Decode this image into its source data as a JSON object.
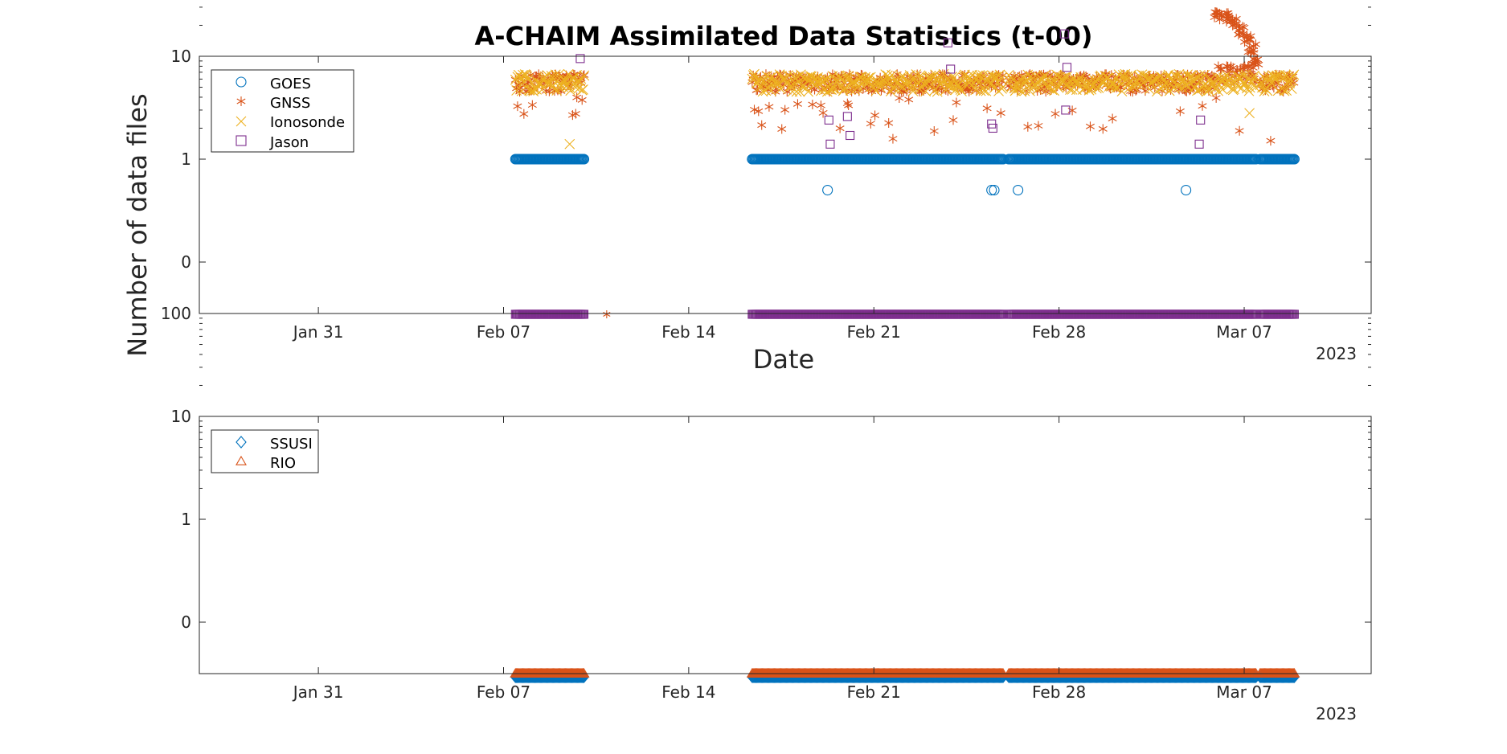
{
  "figure_title": "A-CHAIM Assimilated Data Statistics (t-00)",
  "colors": {
    "blue": "#0072BD",
    "orange": "#D95319",
    "yellow": "#EDB120",
    "purple": "#7E2F8E",
    "axis": "#262626"
  },
  "chart_data": [
    {
      "type": "scatter",
      "title": "A-CHAIM Assimilated Data Statistics (t-00)",
      "xlabel": "Date",
      "ylabel": "Number of data files",
      "x_unit": "days since Jan 31 2023",
      "xlim": [
        -4.5,
        39.8
      ],
      "ylim_log": [
        -0.5,
        2
      ],
      "ytick_labels": [
        "0",
        "1",
        "10",
        "100"
      ],
      "xtick_labels": [
        "Jan 31",
        "Feb 07",
        "Feb 14",
        "Feb 21",
        "Feb 28",
        "Mar 07"
      ],
      "year_label": "2023",
      "legend_location": "top-left",
      "legend": [
        "GOES",
        "GNSS",
        "Ionosonde",
        "Jason"
      ],
      "series": [
        {
          "name": "GOES",
          "marker": "circle",
          "color": "#0072BD",
          "segments": [
            [
              7.45,
              10.05
            ],
            [
              16.4,
              25.9
            ],
            [
              26.1,
              35.45
            ],
            [
              35.6,
              36.9
            ]
          ],
          "segment_value": 1,
          "extra_points": [
            [
              19.25,
              0.5
            ],
            [
              25.45,
              0.5
            ],
            [
              25.55,
              0.5
            ],
            [
              26.45,
              0.5
            ],
            [
              32.8,
              0.5
            ]
          ]
        },
        {
          "name": "GNSS",
          "marker": "asterisk",
          "color": "#D95319",
          "segments": [
            [
              7.45,
              10.05
            ],
            [
              16.4,
              25.9
            ],
            [
              26.1,
              35.45
            ],
            [
              35.6,
              36.9
            ]
          ],
          "typical_value": 5.5,
          "dips_to": 1.5,
          "ramp_points": [
            [
              34.0,
              25
            ],
            [
              34.3,
              24
            ],
            [
              34.6,
              22
            ],
            [
              34.9,
              18
            ],
            [
              35.1,
              15
            ],
            [
              35.3,
              12
            ],
            [
              35.45,
              9
            ]
          ],
          "zero_points": [
            [
              10.9,
              0.0
            ],
            [
              21.5,
              0.0
            ],
            [
              29.5,
              0.0
            ]
          ]
        },
        {
          "name": "Ionosonde",
          "marker": "x",
          "color": "#EDB120",
          "segments": [
            [
              7.45,
              10.05
            ],
            [
              16.4,
              25.9
            ],
            [
              26.1,
              35.45
            ],
            [
              35.6,
              36.9
            ]
          ],
          "typical_value": 5.5,
          "extra_points": [
            [
              9.5,
              1.4
            ],
            [
              35.2,
              2.8
            ]
          ]
        },
        {
          "name": "Jason",
          "marker": "square",
          "color": "#7E2F8E",
          "points": [
            [
              9.9,
              9.5
            ],
            [
              19.3,
              2.4
            ],
            [
              19.35,
              1.4
            ],
            [
              20.0,
              2.6
            ],
            [
              20.1,
              1.7
            ],
            [
              23.8,
              13.5
            ],
            [
              23.9,
              7.5
            ],
            [
              25.45,
              2.2
            ],
            [
              25.5,
              2.0
            ],
            [
              28.2,
              16.5
            ],
            [
              28.3,
              7.8
            ],
            [
              28.25,
              3.0
            ],
            [
              33.35,
              2.4
            ],
            [
              33.3,
              1.4
            ]
          ],
          "baseline_segments": [
            [
              7.45,
              10.05
            ],
            [
              16.4,
              25.9
            ],
            [
              26.1,
              35.45
            ],
            [
              35.6,
              36.9
            ]
          ]
        }
      ]
    },
    {
      "type": "scatter",
      "xlabel": "",
      "ylabel": "",
      "x_unit": "days since Jan 31 2023",
      "xlim": [
        -4.5,
        39.8
      ],
      "ylim_log": [
        -0.5,
        2
      ],
      "ytick_labels": [
        "0",
        "1",
        "10",
        "100"
      ],
      "xtick_labels": [
        "Jan 31",
        "Feb 07",
        "Feb 14",
        "Feb 21",
        "Feb 28",
        "Mar 07"
      ],
      "year_label": "2023",
      "legend_location": "top-left",
      "legend": [
        "SSUSI",
        "RIO"
      ],
      "series": [
        {
          "name": "SSUSI",
          "marker": "diamond",
          "color": "#0072BD",
          "baseline_segments": [
            [
              7.45,
              10.05
            ],
            [
              16.4,
              25.9
            ],
            [
              26.1,
              35.45
            ],
            [
              35.6,
              36.9
            ]
          ]
        },
        {
          "name": "RIO",
          "marker": "triangle",
          "color": "#D95319",
          "baseline_segments": [
            [
              7.45,
              10.05
            ],
            [
              16.4,
              25.9
            ],
            [
              26.1,
              35.45
            ],
            [
              35.6,
              36.9
            ]
          ]
        }
      ]
    }
  ]
}
